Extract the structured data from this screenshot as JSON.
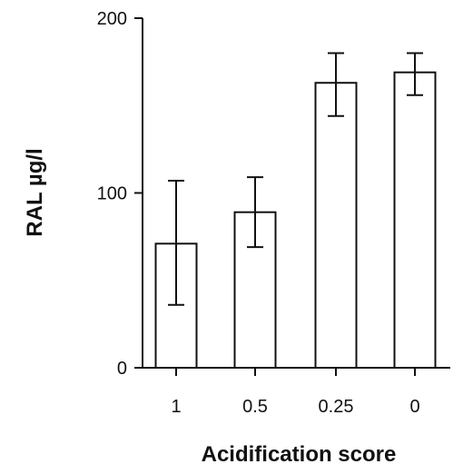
{
  "chart_data": {
    "type": "bar",
    "categories": [
      "1",
      "0.5",
      "0.25",
      "0"
    ],
    "values": [
      71,
      89,
      163,
      169
    ],
    "error_low": [
      36,
      69,
      144,
      156
    ],
    "error_high": [
      107,
      109,
      180,
      180
    ],
    "xlabel": "Acidification score",
    "ylabel": "RAL  µg/l",
    "ylim": [
      0,
      200
    ],
    "yticks": [
      0,
      100,
      200
    ],
    "grid": false,
    "legend": "none",
    "bar_fill": "#ffffff",
    "bar_stroke": "#111111"
  }
}
